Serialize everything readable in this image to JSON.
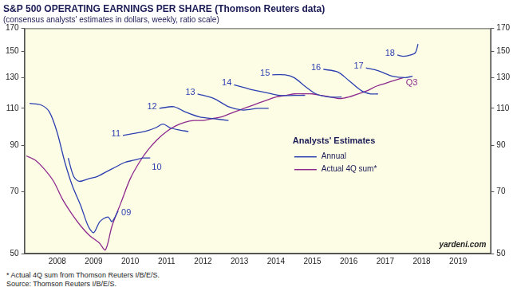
{
  "chart_data": {
    "type": "line",
    "title": "S&P 500 OPERATING EARNINGS PER SHARE (Thomson Reuters data)",
    "subtitle": "(consensus analysts' estimates in dollars, weekly, ratio scale)",
    "log": "y",
    "grid": false,
    "xlim": [
      2007.6,
      2020.4
    ],
    "xticks": [
      {
        "value": 2008.5,
        "label": "2008"
      },
      {
        "value": 2009.5,
        "label": "2009"
      },
      {
        "value": 2010.5,
        "label": "2010"
      },
      {
        "value": 2011.5,
        "label": "2011"
      },
      {
        "value": 2012.5,
        "label": "2012"
      },
      {
        "value": 2013.5,
        "label": "2013"
      },
      {
        "value": 2014.5,
        "label": "2014"
      },
      {
        "value": 2015.5,
        "label": "2015"
      },
      {
        "value": 2016.5,
        "label": "2016"
      },
      {
        "value": 2017.5,
        "label": "2017"
      },
      {
        "value": 2018.5,
        "label": "2018"
      },
      {
        "value": 2019.5,
        "label": "2019"
      }
    ],
    "ylim": [
      50,
      170
    ],
    "yticks": [
      50,
      70,
      90,
      110,
      130,
      150,
      170
    ],
    "y2lim": [
      50,
      170
    ],
    "y2ticks": [
      50,
      70,
      90,
      110,
      130,
      150,
      170
    ],
    "legend_title": "Analysts' Estimates",
    "legend_entries": [
      {
        "name": "Annual",
        "color": "#2b3fb0"
      },
      {
        "name": "Actual 4Q sum*",
        "color": "#8e2a8e"
      }
    ],
    "watermark": "yardeni.com",
    "notes": [
      "* Actual 4Q sum from Thomson Reuters I/B/E/S.",
      "Source: Thomson Reuters I/B/E/S."
    ],
    "series": [
      {
        "name": "09",
        "color": "#2b3fb0",
        "x": [
          2007.74,
          2008.06,
          2008.28,
          2008.49,
          2008.71,
          2008.92,
          2009.14,
          2009.35,
          2009.5,
          2009.67,
          2009.89,
          2010.0,
          2010.17
        ],
        "values": [
          113,
          112,
          108,
          97,
          82,
          72,
          65,
          58,
          56,
          59.5,
          61,
          59.5,
          63
        ]
      },
      {
        "name": "10",
        "color": "#2b3fb0",
        "x": [
          2008.8,
          2008.95,
          2009.1,
          2009.35,
          2009.6,
          2009.85,
          2010.1,
          2010.35,
          2010.6,
          2010.85,
          2011.05
        ],
        "values": [
          84,
          76,
          74,
          75,
          76,
          78,
          80,
          82,
          83,
          84,
          84
        ]
      },
      {
        "name": "11",
        "color": "#2b3fb0",
        "x": [
          2010.3,
          2010.6,
          2010.9,
          2011.2,
          2011.4,
          2011.6,
          2011.8,
          2012.1
        ],
        "values": [
          95,
          96,
          97,
          99,
          101,
          99,
          98,
          97
        ]
      },
      {
        "name": "12",
        "color": "#2b3fb0",
        "x": [
          2011.3,
          2011.7,
          2012.0,
          2012.4,
          2012.8,
          2013.2
        ],
        "values": [
          110,
          111,
          108,
          105,
          104,
          103
        ]
      },
      {
        "name": "13",
        "color": "#2b3fb0",
        "x": [
          2012.35,
          2012.8,
          2013.2,
          2013.6,
          2014.0,
          2014.3
        ],
        "values": [
          119,
          116,
          111,
          109,
          110,
          110
        ]
      },
      {
        "name": "14",
        "color": "#2b3fb0",
        "x": [
          2013.35,
          2013.8,
          2014.2,
          2014.6,
          2015.0,
          2015.3
        ],
        "values": [
          125,
          122,
          120,
          118,
          118,
          118
        ]
      },
      {
        "name": "15",
        "color": "#2b3fb0",
        "x": [
          2014.4,
          2014.75,
          2015.0,
          2015.3,
          2015.6,
          2015.95,
          2016.3
        ],
        "values": [
          132,
          132,
          130,
          124,
          119,
          117,
          117
        ]
      },
      {
        "name": "16",
        "color": "#2b3fb0",
        "x": [
          2015.8,
          2016.2,
          2016.5,
          2016.85,
          2017.1,
          2017.3
        ],
        "values": [
          136,
          134,
          128,
          121,
          119,
          119
        ]
      },
      {
        "name": "17",
        "color": "#2b3fb0",
        "x": [
          2016.97,
          2017.3,
          2017.7,
          2018.05,
          2018.25
        ],
        "values": [
          137,
          135,
          131,
          130,
          131
        ]
      },
      {
        "name": "18",
        "color": "#2b3fb0",
        "x": [
          2017.83,
          2018.0,
          2018.2,
          2018.33,
          2018.4
        ],
        "values": [
          147,
          146,
          147,
          149,
          156
        ]
      },
      {
        "name": "Actual 4Q sum*",
        "color": "#8e2a8e",
        "end_label": "Q3",
        "x": [
          2007.65,
          2007.9,
          2008.15,
          2008.4,
          2008.65,
          2008.9,
          2009.15,
          2009.4,
          2009.65,
          2009.82,
          2010.0,
          2010.25,
          2010.5,
          2010.75,
          2011.0,
          2011.25,
          2011.5,
          2011.75,
          2012.0,
          2012.25,
          2012.5,
          2012.75,
          2013.0,
          2013.25,
          2013.5,
          2013.75,
          2014.0,
          2014.25,
          2014.5,
          2014.75,
          2015.0,
          2015.25,
          2015.5,
          2015.75,
          2016.0,
          2016.25,
          2016.5,
          2016.75,
          2017.0,
          2017.25,
          2017.5,
          2017.75,
          2018.0
        ],
        "values": [
          85,
          83,
          79,
          74,
          67,
          62,
          58,
          55,
          53,
          51,
          58,
          66,
          75,
          82,
          88,
          93,
          97,
          100,
          102,
          103,
          103,
          104,
          105,
          107,
          109,
          111,
          113,
          115,
          117,
          118,
          119,
          119,
          119,
          118,
          117,
          116,
          117,
          119,
          121,
          124,
          126,
          128,
          130
        ]
      }
    ]
  }
}
